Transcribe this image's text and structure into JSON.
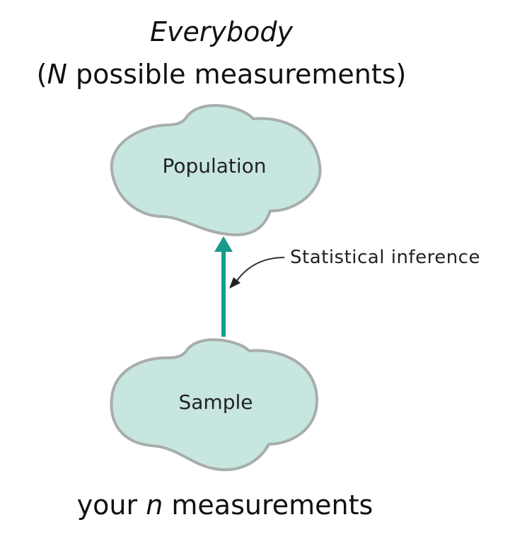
{
  "header": {
    "title": "Everybody",
    "subtitle_open": "(",
    "subtitle_symbol": "N",
    "subtitle_rest": " possible measurements)"
  },
  "population": {
    "label": "Population"
  },
  "sample": {
    "label": "Sample"
  },
  "arrow": {
    "label": "Statistical inference"
  },
  "footer": {
    "prefix": "your ",
    "symbol": "n",
    "suffix": " measurements"
  },
  "colors": {
    "cloud_fill": "#c8e6e0",
    "cloud_stroke": "#a7aeac",
    "arrow": "#169c88"
  }
}
